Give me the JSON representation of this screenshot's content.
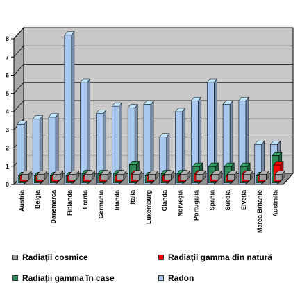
{
  "chart_data": {
    "type": "bar",
    "categories": [
      "Austria",
      "Belgia",
      "Danemarca",
      "Finlanda",
      "Franta",
      "Germania",
      "Irlanda",
      "Italia",
      "Luxemburg",
      "Olanda",
      "Norvegia",
      "Portugalia",
      "Spania",
      "Suedia",
      "Elveţia",
      "Marea Britanie",
      "Australia"
    ],
    "series": [
      {
        "name": "Radiaţii cosmice",
        "color": "#a0a0a0",
        "values": [
          0.3,
          0.3,
          0.3,
          0.3,
          0.3,
          0.3,
          0.3,
          0.3,
          0.3,
          0.3,
          0.3,
          0.3,
          0.3,
          0.3,
          0.3,
          0.3,
          0.3
        ]
      },
      {
        "name": "Radiaţii gamma din natură",
        "color": "#ff0000",
        "values": [
          0.3,
          0.3,
          0.3,
          0.3,
          0.3,
          0.3,
          0.3,
          0.4,
          0.3,
          0.3,
          0.3,
          0.4,
          0.3,
          0.3,
          0.4,
          0.3,
          0.9
        ]
      },
      {
        "name": "Radiaţii gamma în case",
        "color": "#2e8b57",
        "values": [
          0.4,
          0.4,
          0.4,
          0.4,
          0.5,
          0.5,
          0.5,
          1.0,
          0.4,
          0.5,
          0.5,
          0.9,
          0.9,
          0.9,
          0.9,
          0.4,
          1.5
        ]
      },
      {
        "name": "Radon",
        "color": "#a8c8f0",
        "values": [
          3.3,
          3.6,
          3.7,
          8.2,
          5.6,
          3.9,
          4.3,
          4.2,
          4.4,
          2.6,
          4.0,
          4.6,
          5.6,
          4.4,
          4.6,
          2.2,
          2.2
        ]
      }
    ],
    "ylim": [
      0,
      8
    ],
    "yticks": [
      "0",
      "1",
      "2",
      "3",
      "4",
      "5",
      "6",
      "7",
      "8"
    ],
    "grid": true,
    "legend_position": "bottom"
  }
}
